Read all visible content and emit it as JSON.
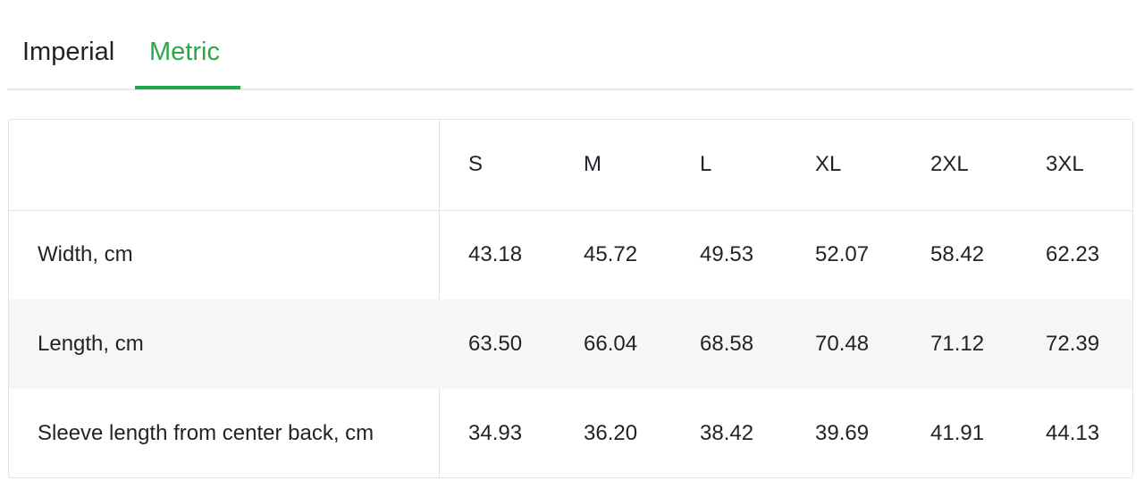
{
  "tabs": [
    {
      "label": "Imperial",
      "active": false
    },
    {
      "label": "Metric",
      "active": true
    }
  ],
  "accent_color": "#2aa845",
  "table": {
    "header_label": "",
    "sizes": [
      "S",
      "M",
      "L",
      "XL",
      "2XL",
      "3XL"
    ],
    "rows": [
      {
        "label": "Width, cm",
        "values": [
          "43.18",
          "45.72",
          "49.53",
          "52.07",
          "58.42",
          "62.23"
        ]
      },
      {
        "label": "Length, cm",
        "values": [
          "63.50",
          "66.04",
          "68.58",
          "70.48",
          "71.12",
          "72.39"
        ]
      },
      {
        "label": "Sleeve length from center back, cm",
        "values": [
          "34.93",
          "36.20",
          "38.42",
          "39.69",
          "41.91",
          "44.13"
        ]
      }
    ]
  }
}
